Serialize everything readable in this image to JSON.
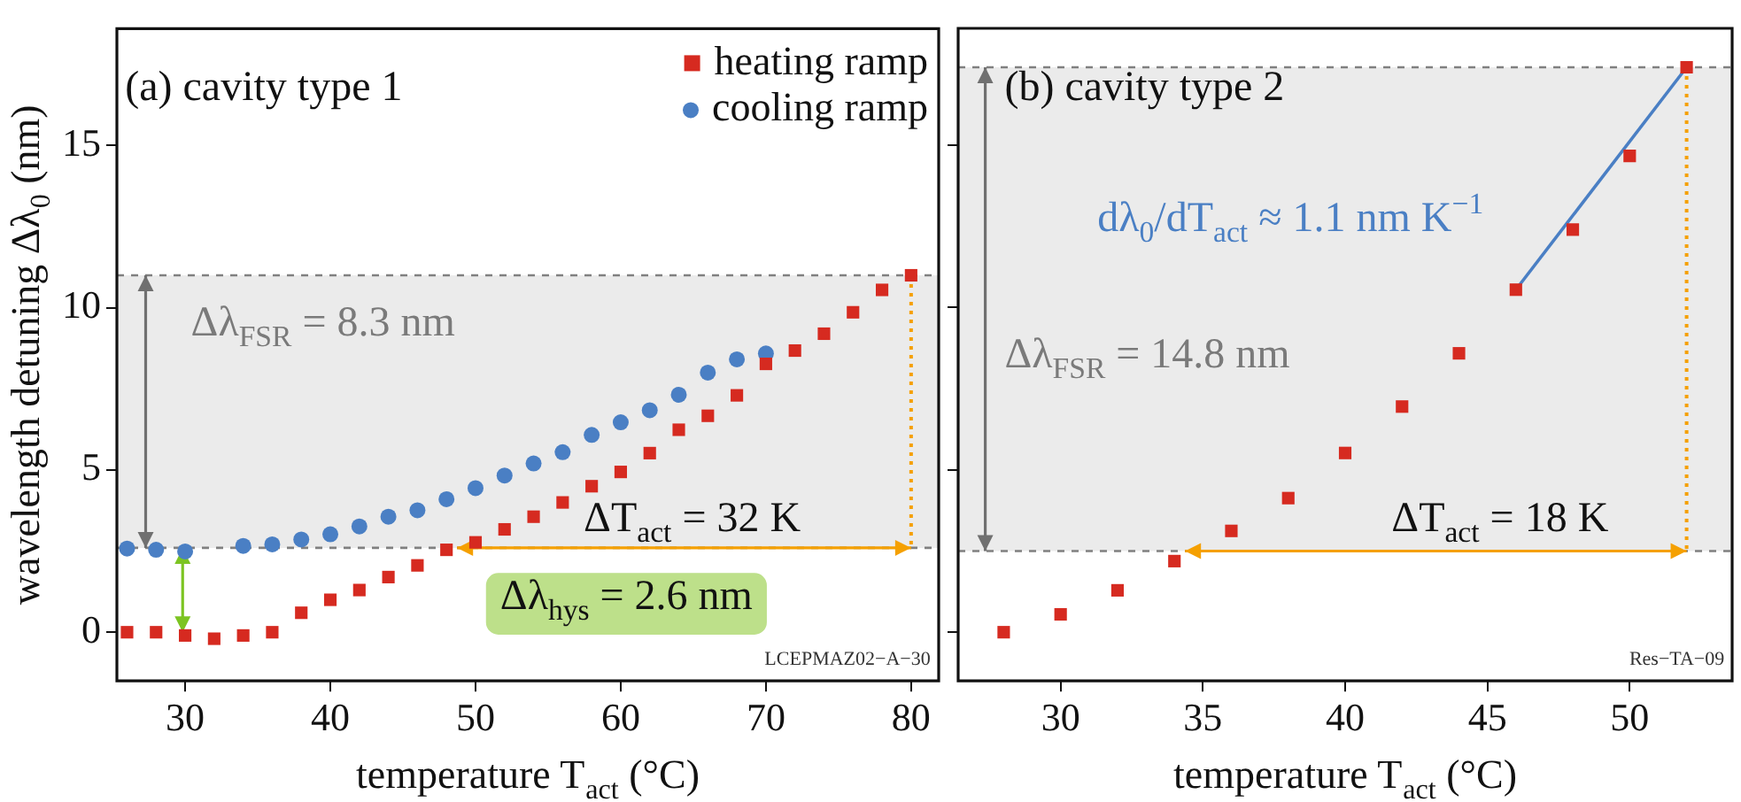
{
  "chart_data": [
    {
      "type": "scatter",
      "xlabel": "temperature T$_{act}$ (°C)",
      "ylabel": "wavelength detuning Δλ$_{0}$ (nm)",
      "xlim": [
        25.3,
        81.9
      ],
      "xticks": [
        30,
        40,
        50,
        60,
        70,
        80
      ],
      "ylim": [
        -1.5,
        18.6
      ],
      "yticks": [
        0,
        5,
        10,
        15
      ],
      "legend": "top right",
      "series": [
        {
          "name": "heating ramp",
          "color": "#d62a20",
          "marker": "square",
          "x": [
            26,
            28,
            30,
            32,
            34,
            36,
            38,
            40,
            42,
            44,
            46,
            48,
            50,
            52,
            54,
            56,
            58,
            60,
            62,
            64,
            66,
            68,
            70,
            72,
            74,
            76,
            78,
            80
          ],
          "values": [
            0,
            0,
            -0.1,
            -0.2,
            -0.1,
            0,
            0.6,
            1.0,
            1.3,
            1.7,
            2.06,
            2.54,
            2.77,
            3.17,
            3.56,
            4.0,
            4.5,
            4.94,
            5.52,
            6.24,
            6.67,
            7.3,
            8.27,
            8.68,
            9.2,
            9.86,
            10.55,
            11.0
          ]
        },
        {
          "name": "cooling ramp",
          "color": "#4a7fc4",
          "marker": "circle",
          "x": [
            26,
            28,
            30,
            34,
            36,
            38,
            40,
            42,
            44,
            46,
            48,
            50,
            52,
            54,
            56,
            58,
            60,
            62,
            64,
            66,
            68,
            70
          ],
          "values": [
            2.58,
            2.54,
            2.49,
            2.66,
            2.71,
            2.86,
            3.02,
            3.26,
            3.56,
            3.76,
            4.1,
            4.44,
            4.83,
            5.2,
            5.55,
            6.08,
            6.47,
            6.84,
            7.32,
            8.0,
            8.41,
            8.59
          ]
        }
      ],
      "bands": [
        {
          "axis": "y",
          "from": 2.6,
          "to": 11.0,
          "color": "#ebebeb"
        }
      ],
      "ref_lines": [
        {
          "axis": "y",
          "value": 11.0,
          "color": "#808080",
          "line_style": "dashed"
        },
        {
          "axis": "y",
          "value": 2.6,
          "color": "#808080",
          "line_style": "dashed"
        },
        {
          "axis": "x",
          "value": 80,
          "color": "#f5a000",
          "line_style": "dotted"
        }
      ],
      "annotations": [
        "(a) cavity type 1",
        "Δλ$_{FSR}$ = 8.3 nm",
        "ΔT$_{act}$ = 32 K",
        "Δλ$_{hys}$ = 2.6 nm",
        "LCEPMAZ02−A−30"
      ]
    },
    {
      "type": "scatter",
      "xlabel": "temperature T$_{act}$ (°C)",
      "xlim": [
        26.4,
        53.6
      ],
      "xticks": [
        30,
        35,
        40,
        45,
        50
      ],
      "ylim": [
        -1.5,
        18.6
      ],
      "yticks": [
        0,
        5,
        10,
        15
      ],
      "tick_labels": "x",
      "series": [
        {
          "color": "#d62a20",
          "marker": "square",
          "x": [
            28,
            30,
            32,
            34,
            36,
            38,
            40,
            42,
            44,
            46,
            48,
            50,
            52
          ],
          "values": [
            0,
            0.55,
            1.29,
            2.19,
            3.12,
            4.13,
            5.52,
            6.95,
            8.59,
            10.55,
            12.4,
            14.67,
            17.4
          ]
        },
        {
          "type": "line",
          "color": "#4a7fc4",
          "marker": "none",
          "x": [
            46,
            52
          ],
          "values": [
            10.55,
            17.4
          ]
        }
      ],
      "bands": [
        {
          "axis": "y",
          "from": 2.5,
          "to": 17.4,
          "color": "#ebebeb"
        }
      ],
      "ref_lines": [
        {
          "axis": "y",
          "value": 17.4,
          "color": "#808080",
          "line_style": "dashed"
        },
        {
          "axis": "y",
          "value": 2.5,
          "color": "#808080",
          "line_style": "dashed"
        },
        {
          "axis": "x",
          "value": 52,
          "color": "#f5a000",
          "line_style": "dotted"
        }
      ],
      "annotations": [
        "(b) cavity type 2",
        "dλ$_{0}$/dT$_{act}$ ≈ 1.1 nm K$^{−1}$",
        "Δλ$_{FSR}$ = 14.8 nm",
        "ΔT$_{act}$ = 18 K",
        "Res−TA−09"
      ]
    }
  ]
}
